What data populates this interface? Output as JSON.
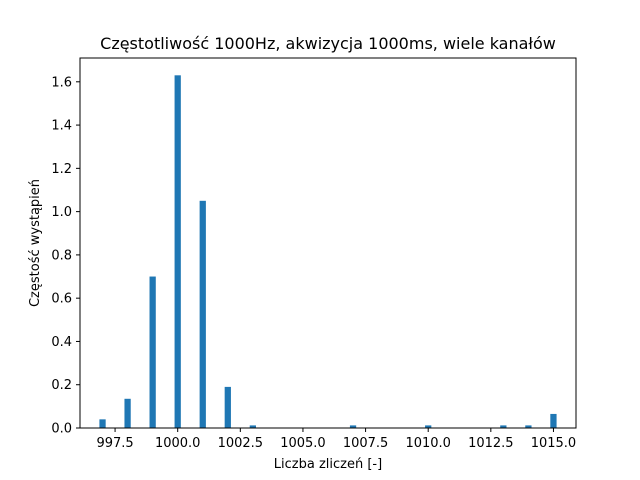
{
  "chart_data": {
    "type": "bar",
    "title": "Częstotliwość 1000Hz, akwizycja 1000ms, wiele kanałów",
    "xlabel": "Liczba zliczeń [-]",
    "ylabel": "Częstość wystąpień",
    "x": [
      997,
      998,
      999,
      1000,
      1001,
      1002,
      1003,
      1007,
      1010,
      1013,
      1014,
      1015
    ],
    "values": [
      0.04,
      0.135,
      0.7,
      1.63,
      1.05,
      0.19,
      0.012,
      0.012,
      0.012,
      0.012,
      0.012,
      0.065
    ],
    "xlim": [
      996.1,
      1015.9
    ],
    "ylim": [
      0,
      1.71
    ],
    "bar_width": 0.25,
    "xticks": [
      997.5,
      1000.0,
      1002.5,
      1005.0,
      1007.5,
      1010.0,
      1012.5,
      1015.0
    ],
    "xtick_labels": [
      "997.5",
      "1000.0",
      "1002.5",
      "1005.0",
      "1007.5",
      "1010.0",
      "1012.5",
      "1015.0"
    ],
    "yticks": [
      0.0,
      0.2,
      0.4,
      0.6,
      0.8,
      1.0,
      1.2,
      1.4,
      1.6
    ],
    "ytick_labels": [
      "0.0",
      "0.2",
      "0.4",
      "0.6",
      "0.8",
      "1.0",
      "1.2",
      "1.4",
      "1.6"
    ],
    "bar_color": "#1f77b4",
    "grid": false,
    "legend": "none"
  }
}
